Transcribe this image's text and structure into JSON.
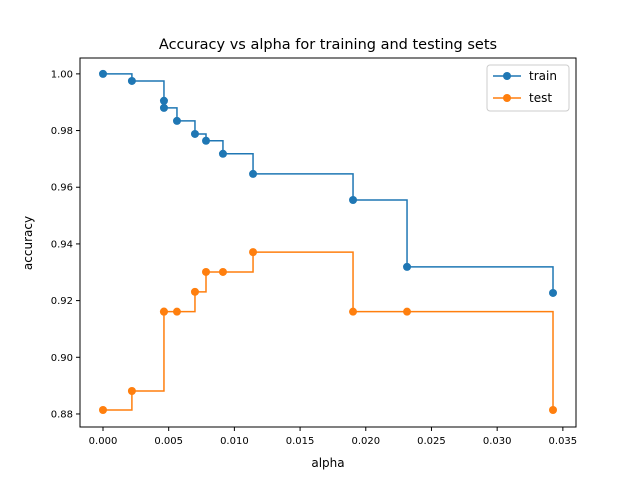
{
  "chart_data": {
    "type": "line",
    "title": "Accuracy vs alpha for training and testing sets",
    "xlabel": "alpha",
    "ylabel": "accuracy",
    "xlim": [
      -0.00175,
      0.036
    ],
    "ylim": [
      0.8754,
      1.0056
    ],
    "xticks": [
      0.0,
      0.005,
      0.01,
      0.015,
      0.02,
      0.025,
      0.03,
      0.035
    ],
    "xtick_labels": [
      "0.000",
      "0.005",
      "0.010",
      "0.015",
      "0.020",
      "0.025",
      "0.030",
      "0.035"
    ],
    "yticks": [
      0.88,
      0.9,
      0.92,
      0.94,
      0.96,
      0.98,
      1.0
    ],
    "ytick_labels": [
      "0.88",
      "0.90",
      "0.92",
      "0.94",
      "0.96",
      "0.98",
      "1.00"
    ],
    "grid": false,
    "drawstyle": "steps-post",
    "marker": "circle",
    "legend_placement": "top-right",
    "x": [
      0.0,
      0.0022,
      0.00464,
      0.00464,
      0.00563,
      0.007,
      0.00784,
      0.00913,
      0.01142,
      0.01903,
      0.02314,
      0.03425
    ],
    "series": [
      {
        "name": "train",
        "color": "#1f77b4",
        "values": [
          1.0,
          0.9975,
          0.9905,
          0.988,
          0.9834,
          0.9788,
          0.9764,
          0.9718,
          0.9647,
          0.9555,
          0.9319,
          0.9227
        ]
      },
      {
        "name": "test",
        "color": "#ff7f0e",
        "values": [
          0.8814,
          0.8881,
          0.9161,
          0.9161,
          0.9161,
          0.9231,
          0.9301,
          0.9301,
          0.9371,
          0.9161,
          0.9161,
          0.8814
        ]
      }
    ]
  }
}
